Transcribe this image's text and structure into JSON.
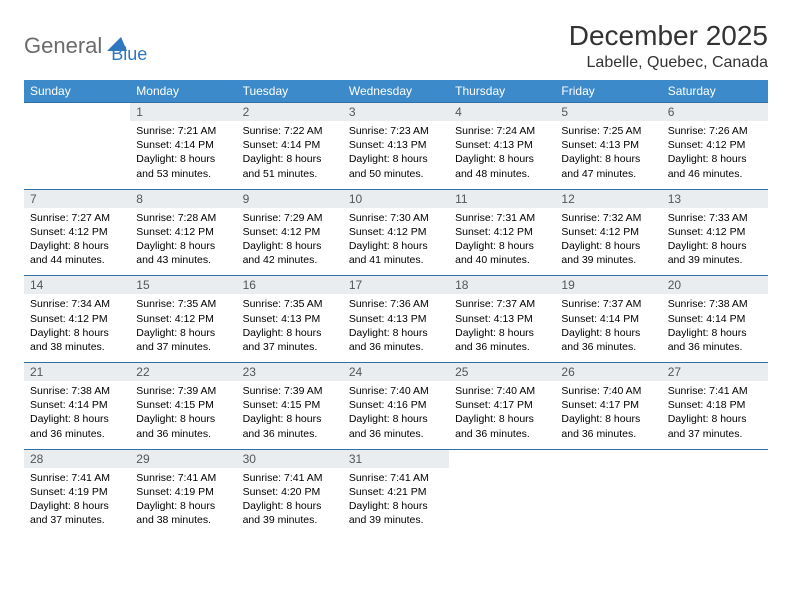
{
  "logo": {
    "part1": "General",
    "part2": "Blue"
  },
  "title": "December 2025",
  "location": "Labelle, Quebec, Canada",
  "colors": {
    "header_bg": "#3c8ac9",
    "header_text": "#ffffff",
    "daynum_bg": "#e9edf0",
    "daynum_text": "#555555",
    "border": "#2f6fa8",
    "logo_gray": "#6b6b6b",
    "logo_blue": "#2f78bf"
  },
  "weekdays": [
    "Sunday",
    "Monday",
    "Tuesday",
    "Wednesday",
    "Thursday",
    "Friday",
    "Saturday"
  ],
  "weeks": [
    [
      null,
      {
        "n": "1",
        "sr": "Sunrise: 7:21 AM",
        "ss": "Sunset: 4:14 PM",
        "d1": "Daylight: 8 hours",
        "d2": "and 53 minutes."
      },
      {
        "n": "2",
        "sr": "Sunrise: 7:22 AM",
        "ss": "Sunset: 4:14 PM",
        "d1": "Daylight: 8 hours",
        "d2": "and 51 minutes."
      },
      {
        "n": "3",
        "sr": "Sunrise: 7:23 AM",
        "ss": "Sunset: 4:13 PM",
        "d1": "Daylight: 8 hours",
        "d2": "and 50 minutes."
      },
      {
        "n": "4",
        "sr": "Sunrise: 7:24 AM",
        "ss": "Sunset: 4:13 PM",
        "d1": "Daylight: 8 hours",
        "d2": "and 48 minutes."
      },
      {
        "n": "5",
        "sr": "Sunrise: 7:25 AM",
        "ss": "Sunset: 4:13 PM",
        "d1": "Daylight: 8 hours",
        "d2": "and 47 minutes."
      },
      {
        "n": "6",
        "sr": "Sunrise: 7:26 AM",
        "ss": "Sunset: 4:12 PM",
        "d1": "Daylight: 8 hours",
        "d2": "and 46 minutes."
      }
    ],
    [
      {
        "n": "7",
        "sr": "Sunrise: 7:27 AM",
        "ss": "Sunset: 4:12 PM",
        "d1": "Daylight: 8 hours",
        "d2": "and 44 minutes."
      },
      {
        "n": "8",
        "sr": "Sunrise: 7:28 AM",
        "ss": "Sunset: 4:12 PM",
        "d1": "Daylight: 8 hours",
        "d2": "and 43 minutes."
      },
      {
        "n": "9",
        "sr": "Sunrise: 7:29 AM",
        "ss": "Sunset: 4:12 PM",
        "d1": "Daylight: 8 hours",
        "d2": "and 42 minutes."
      },
      {
        "n": "10",
        "sr": "Sunrise: 7:30 AM",
        "ss": "Sunset: 4:12 PM",
        "d1": "Daylight: 8 hours",
        "d2": "and 41 minutes."
      },
      {
        "n": "11",
        "sr": "Sunrise: 7:31 AM",
        "ss": "Sunset: 4:12 PM",
        "d1": "Daylight: 8 hours",
        "d2": "and 40 minutes."
      },
      {
        "n": "12",
        "sr": "Sunrise: 7:32 AM",
        "ss": "Sunset: 4:12 PM",
        "d1": "Daylight: 8 hours",
        "d2": "and 39 minutes."
      },
      {
        "n": "13",
        "sr": "Sunrise: 7:33 AM",
        "ss": "Sunset: 4:12 PM",
        "d1": "Daylight: 8 hours",
        "d2": "and 39 minutes."
      }
    ],
    [
      {
        "n": "14",
        "sr": "Sunrise: 7:34 AM",
        "ss": "Sunset: 4:12 PM",
        "d1": "Daylight: 8 hours",
        "d2": "and 38 minutes."
      },
      {
        "n": "15",
        "sr": "Sunrise: 7:35 AM",
        "ss": "Sunset: 4:12 PM",
        "d1": "Daylight: 8 hours",
        "d2": "and 37 minutes."
      },
      {
        "n": "16",
        "sr": "Sunrise: 7:35 AM",
        "ss": "Sunset: 4:13 PM",
        "d1": "Daylight: 8 hours",
        "d2": "and 37 minutes."
      },
      {
        "n": "17",
        "sr": "Sunrise: 7:36 AM",
        "ss": "Sunset: 4:13 PM",
        "d1": "Daylight: 8 hours",
        "d2": "and 36 minutes."
      },
      {
        "n": "18",
        "sr": "Sunrise: 7:37 AM",
        "ss": "Sunset: 4:13 PM",
        "d1": "Daylight: 8 hours",
        "d2": "and 36 minutes."
      },
      {
        "n": "19",
        "sr": "Sunrise: 7:37 AM",
        "ss": "Sunset: 4:14 PM",
        "d1": "Daylight: 8 hours",
        "d2": "and 36 minutes."
      },
      {
        "n": "20",
        "sr": "Sunrise: 7:38 AM",
        "ss": "Sunset: 4:14 PM",
        "d1": "Daylight: 8 hours",
        "d2": "and 36 minutes."
      }
    ],
    [
      {
        "n": "21",
        "sr": "Sunrise: 7:38 AM",
        "ss": "Sunset: 4:14 PM",
        "d1": "Daylight: 8 hours",
        "d2": "and 36 minutes."
      },
      {
        "n": "22",
        "sr": "Sunrise: 7:39 AM",
        "ss": "Sunset: 4:15 PM",
        "d1": "Daylight: 8 hours",
        "d2": "and 36 minutes."
      },
      {
        "n": "23",
        "sr": "Sunrise: 7:39 AM",
        "ss": "Sunset: 4:15 PM",
        "d1": "Daylight: 8 hours",
        "d2": "and 36 minutes."
      },
      {
        "n": "24",
        "sr": "Sunrise: 7:40 AM",
        "ss": "Sunset: 4:16 PM",
        "d1": "Daylight: 8 hours",
        "d2": "and 36 minutes."
      },
      {
        "n": "25",
        "sr": "Sunrise: 7:40 AM",
        "ss": "Sunset: 4:17 PM",
        "d1": "Daylight: 8 hours",
        "d2": "and 36 minutes."
      },
      {
        "n": "26",
        "sr": "Sunrise: 7:40 AM",
        "ss": "Sunset: 4:17 PM",
        "d1": "Daylight: 8 hours",
        "d2": "and 36 minutes."
      },
      {
        "n": "27",
        "sr": "Sunrise: 7:41 AM",
        "ss": "Sunset: 4:18 PM",
        "d1": "Daylight: 8 hours",
        "d2": "and 37 minutes."
      }
    ],
    [
      {
        "n": "28",
        "sr": "Sunrise: 7:41 AM",
        "ss": "Sunset: 4:19 PM",
        "d1": "Daylight: 8 hours",
        "d2": "and 37 minutes."
      },
      {
        "n": "29",
        "sr": "Sunrise: 7:41 AM",
        "ss": "Sunset: 4:19 PM",
        "d1": "Daylight: 8 hours",
        "d2": "and 38 minutes."
      },
      {
        "n": "30",
        "sr": "Sunrise: 7:41 AM",
        "ss": "Sunset: 4:20 PM",
        "d1": "Daylight: 8 hours",
        "d2": "and 39 minutes."
      },
      {
        "n": "31",
        "sr": "Sunrise: 7:41 AM",
        "ss": "Sunset: 4:21 PM",
        "d1": "Daylight: 8 hours",
        "d2": "and 39 minutes."
      },
      null,
      null,
      null
    ]
  ]
}
